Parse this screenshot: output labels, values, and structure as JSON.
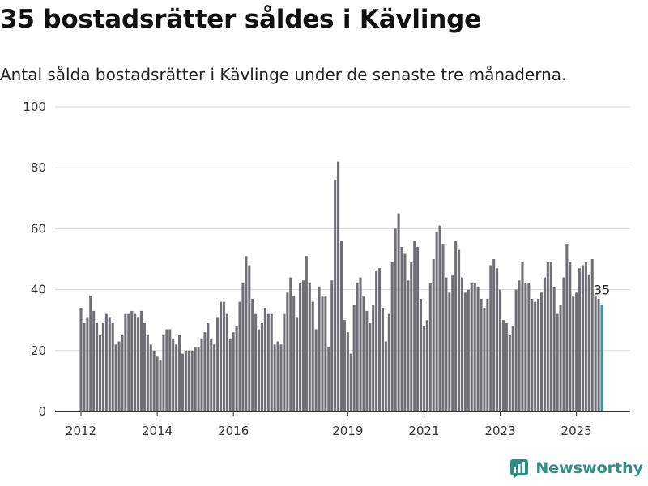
{
  "title": "35 bostadsrätter såldes i Kävlinge",
  "subtitle": "Antal sålda bostadsrätter i Kävlinge under de senaste tre månaderna.",
  "brand": {
    "name": "Newsworthy",
    "icon": "newsworthy-logo-icon"
  },
  "colors": {
    "bar": "#6f6e75",
    "highlight": "#2f9c8d",
    "grid": "#d9d9d9",
    "axis": "#333333",
    "brand": "#2f8f83"
  },
  "chart_data": {
    "type": "bar",
    "x_axis": "monthly, Jan 2012 – Aug 2025",
    "ylim": [
      0,
      100
    ],
    "yticks": [
      0,
      20,
      40,
      60,
      80,
      100
    ],
    "xticks": [
      "2012",
      "2014",
      "2016",
      "2019",
      "2021",
      "2023",
      "2025"
    ],
    "grid": true,
    "highlight_label": "35",
    "values": [
      34,
      29,
      31,
      38,
      33,
      29,
      25,
      29,
      32,
      31,
      29,
      22,
      23,
      25,
      32,
      32,
      33,
      32,
      31,
      33,
      29,
      25,
      22,
      20,
      18,
      17,
      25,
      27,
      27,
      24,
      22,
      25,
      19,
      20,
      20,
      20,
      21,
      21,
      24,
      26,
      29,
      24,
      22,
      31,
      36,
      36,
      32,
      24,
      26,
      28,
      36,
      42,
      51,
      48,
      37,
      32,
      27,
      29,
      34,
      32,
      32,
      22,
      23,
      22,
      32,
      39,
      44,
      38,
      31,
      42,
      43,
      51,
      42,
      36,
      27,
      41,
      38,
      38,
      21,
      43,
      76,
      82,
      56,
      30,
      26,
      19,
      35,
      42,
      44,
      38,
      33,
      29,
      35,
      46,
      47,
      34,
      23,
      32,
      49,
      60,
      65,
      54,
      52,
      43,
      49,
      56,
      54,
      37,
      28,
      30,
      42,
      50,
      59,
      61,
      55,
      44,
      39,
      45,
      56,
      53,
      44,
      39,
      40,
      42,
      42,
      41,
      37,
      34,
      37,
      48,
      50,
      47,
      40,
      30,
      29,
      25,
      28,
      40,
      43,
      49,
      42,
      42,
      37,
      36,
      37,
      39,
      44,
      49,
      49,
      41,
      32,
      35,
      44,
      55,
      49,
      38,
      39,
      47,
      48,
      49,
      45,
      50,
      38,
      37,
      35
    ]
  }
}
